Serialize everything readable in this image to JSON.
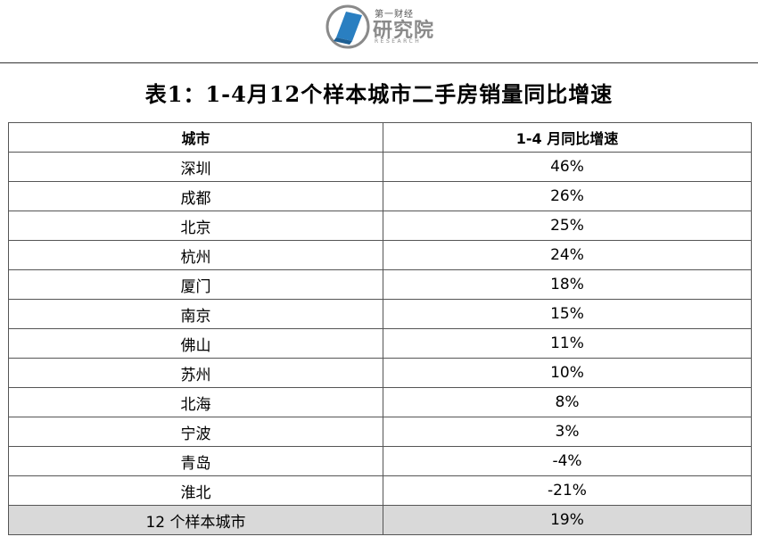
{
  "header": {
    "logo_small": "第一财经",
    "logo_big": "研究院",
    "logo_en": "RESEARCH"
  },
  "title": "表1：1-4月12个样本城市二手房销量同比增速",
  "chart_data": {
    "type": "table",
    "title": "表1：1-4月12个样本城市二手房销量同比增速",
    "columns": [
      "城市",
      "1-4 月同比增速"
    ],
    "rows": [
      {
        "city": "深圳",
        "value": "46%"
      },
      {
        "city": "成都",
        "value": "26%"
      },
      {
        "city": "北京",
        "value": "25%"
      },
      {
        "city": "杭州",
        "value": "24%"
      },
      {
        "city": "厦门",
        "value": "18%"
      },
      {
        "city": "南京",
        "value": "15%"
      },
      {
        "city": "佛山",
        "value": "11%"
      },
      {
        "city": "苏州",
        "value": "10%"
      },
      {
        "city": "北海",
        "value": "8%"
      },
      {
        "city": "宁波",
        "value": "3%"
      },
      {
        "city": "青岛",
        "value": "-4%"
      },
      {
        "city": "淮北",
        "value": "-21%"
      }
    ],
    "total": {
      "city": "12 个样本城市",
      "value": "19%"
    }
  },
  "colors": {
    "logo_blue": "#2a7fc1",
    "total_row_bg": "#d9d9d9"
  }
}
